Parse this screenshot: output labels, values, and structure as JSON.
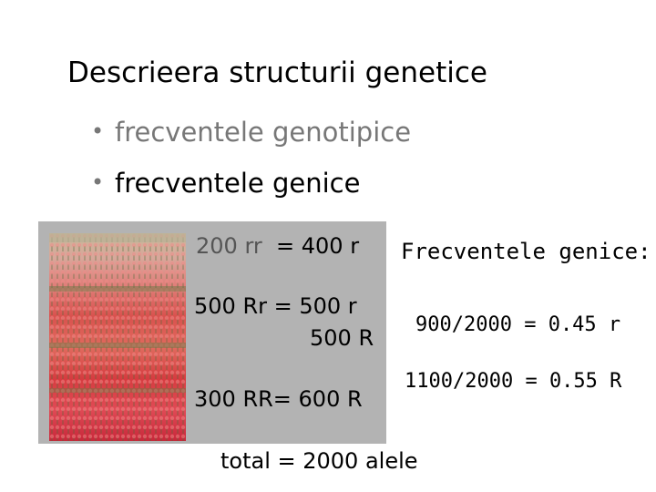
{
  "title": "Descrieera structurii genetice",
  "bullets": [
    {
      "marker": "•",
      "text": "frecventele genotipice"
    },
    {
      "marker": "•",
      "text": "frecventele genice"
    }
  ],
  "genotypes": [
    {
      "count_geno": "200  rr",
      "alleles": "= 400 r"
    },
    {
      "count_geno": "500  Rr",
      "alleles": "= 500 r"
    },
    {
      "count_geno": "",
      "alleles": "500 R"
    },
    {
      "count_geno": "300  RR",
      "alleles": "= 600 R"
    }
  ],
  "gene_frequencies": {
    "label": "Frecventele genice:",
    "r": "900/2000 = 0.45 r",
    "R": "1100/2000 = 0.55 R"
  },
  "total": "total = 2000 alele",
  "colors": {
    "panel": "#b3b3b3",
    "muted_text": "#777777"
  }
}
